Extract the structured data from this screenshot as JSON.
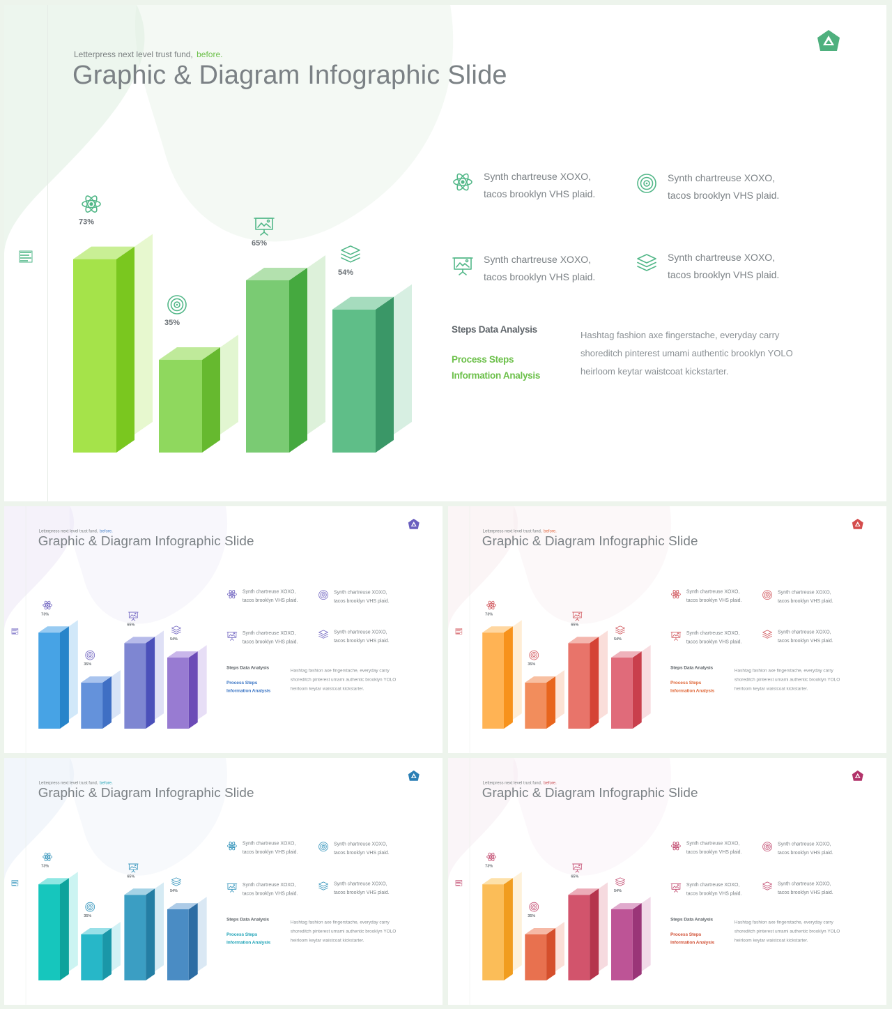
{
  "slide": {
    "subtitle": "Letterpress next level trust fund,",
    "subtitle_accent": "before.",
    "title": "Graphic & Diagram Infographic Slide",
    "features": [
      {
        "icon": "atom-icon",
        "line1": "Synth chartreuse XOXO,",
        "line2": "tacos brooklyn VHS plaid."
      },
      {
        "icon": "target-icon",
        "line1": "Synth chartreuse XOXO,",
        "line2": "tacos brooklyn VHS plaid."
      },
      {
        "icon": "presentation-board-icon",
        "line1": "Synth chartreuse XOXO,",
        "line2": "tacos brooklyn VHS plaid."
      },
      {
        "icon": "layers-icon",
        "line1": "Synth chartreuse XOXO,",
        "line2": "tacos brooklyn VHS plaid."
      }
    ],
    "steps_heading": "Steps Data Analysis",
    "steps_line1": "Process Steps",
    "steps_line2": "Information Analysis",
    "paragraph": "Hashtag fashion axe fingerstache, everyday carry shoreditch pinterest umami authentic brooklyn YOLO heirloom keytar waistcoat kickstarter."
  },
  "chart_data": {
    "type": "bar",
    "categories": [
      "atom",
      "target",
      "presentation",
      "layers"
    ],
    "values": [
      73,
      35,
      65,
      54
    ],
    "labels": [
      "73%",
      "35%",
      "65%",
      "54%"
    ],
    "icons": [
      "atom-icon",
      "target-icon",
      "presentation-board-icon",
      "layers-icon"
    ]
  },
  "themes": [
    {
      "name": "green",
      "accent": "#6cc04a",
      "icon": "#52b788",
      "text_accent": "#6cc04a",
      "logo": "#4fb07e",
      "bars": [
        [
          "#a5e34a",
          "#7ac71f",
          "#c9ef95"
        ],
        [
          "#8fd85e",
          "#66b92f",
          "#bfea9a"
        ],
        [
          "#7acb73",
          "#45a93f",
          "#b3e1ae"
        ],
        [
          "#5fbe88",
          "#3a9767",
          "#a6dcbe"
        ]
      ],
      "blob": "#dfeee0"
    },
    {
      "name": "blue",
      "accent": "#4c84c9",
      "icon": "#6f63c0",
      "text_accent": "#3f78c6",
      "logo": "#6a5fbf",
      "bars": [
        [
          "#47a3e5",
          "#2784ca",
          "#98cbf2"
        ],
        [
          "#6492db",
          "#3f6fc4",
          "#a9c4ee"
        ],
        [
          "#7e86d2",
          "#4b50ba",
          "#b7bbea"
        ],
        [
          "#987bd2",
          "#6c4bb7",
          "#c9b6ea"
        ]
      ],
      "blob": "#ece7f6"
    },
    {
      "name": "orange",
      "accent": "#e2683f",
      "icon": "#d0545a",
      "text_accent": "#e06a3c",
      "logo": "#d44c4c",
      "bars": [
        [
          "#ffb354",
          "#f7921c",
          "#ffd7a1"
        ],
        [
          "#f28d5c",
          "#e8651d",
          "#f8c0a2"
        ],
        [
          "#e8746a",
          "#d54335",
          "#f4b6ae"
        ],
        [
          "#e06b7a",
          "#c93f4c",
          "#efb2bb"
        ]
      ],
      "blob": "#f7ecee"
    },
    {
      "name": "teal",
      "accent": "#2aa7b8",
      "icon": "#2a8fb8",
      "text_accent": "#26a6b9",
      "logo": "#2b7fb5",
      "bars": [
        [
          "#16c6bd",
          "#0ea39c",
          "#8fe7e3"
        ],
        [
          "#27b7c8",
          "#1a97a8",
          "#98e0e8"
        ],
        [
          "#3b9ec3",
          "#247ea4",
          "#a5d3e6"
        ],
        [
          "#4a8cc4",
          "#2c6ca3",
          "#adcbe7"
        ]
      ],
      "blob": "#e8eef7"
    },
    {
      "name": "magenta",
      "accent": "#c94a4f",
      "icon": "#c0456b",
      "text_accent": "#d2553b",
      "logo": "#b2336a",
      "bars": [
        [
          "#fbbd58",
          "#f19d1f",
          "#fde1aa"
        ],
        [
          "#e8714f",
          "#d54f2c",
          "#f6b9a6"
        ],
        [
          "#d2546c",
          "#b5354d",
          "#ecacb8"
        ],
        [
          "#bd5496",
          "#9a3578",
          "#e0aacd"
        ]
      ],
      "blob": "#f5ecf3"
    }
  ]
}
